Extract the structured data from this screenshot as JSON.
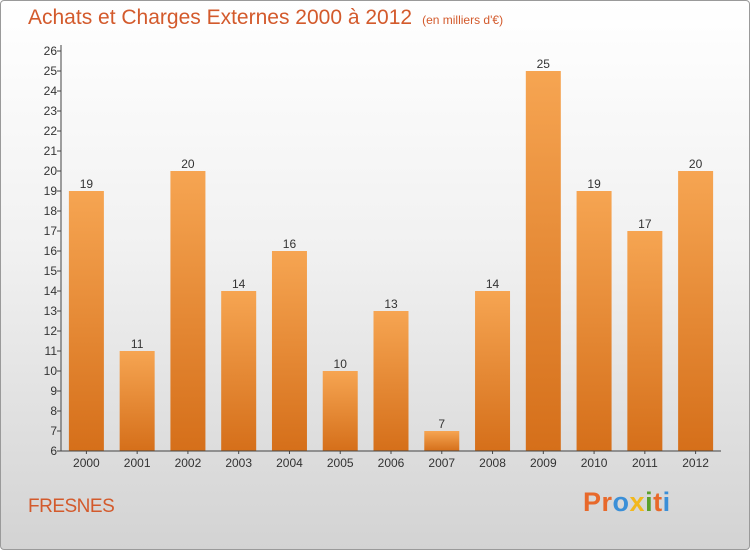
{
  "header": {
    "title": "Achats et Charges Externes 2000 à 2012",
    "subtitle": "(en milliers d'€)"
  },
  "footer": {
    "city": "FRESNES",
    "brand": "Proxiti",
    "brand_colors": [
      "#e8692b",
      "#e8692b",
      "#3a8fd8",
      "#f2b81d",
      "#5aa02c",
      "#e8692b",
      "#3a8fd8"
    ]
  },
  "colors": {
    "bar_light": "#f6a552",
    "bar_dark": "#d56f1a",
    "text": "#d35a2c",
    "axis": "#333333"
  },
  "chart_data": {
    "type": "bar",
    "title": "Achats et Charges Externes 2000 à 2012",
    "subtitle": "(en milliers d'€)",
    "categories": [
      "2000",
      "2001",
      "2002",
      "2003",
      "2004",
      "2005",
      "2006",
      "2007",
      "2008",
      "2009",
      "2010",
      "2011",
      "2012"
    ],
    "values": [
      19,
      11,
      20,
      14,
      16,
      10,
      13,
      7,
      14,
      25,
      19,
      17,
      20
    ],
    "ylim": [
      6,
      26
    ],
    "yticks": [
      6,
      7,
      8,
      9,
      10,
      11,
      12,
      13,
      14,
      15,
      16,
      17,
      18,
      19,
      20,
      21,
      22,
      23,
      24,
      25,
      26
    ],
    "grid": false,
    "data_labels": true
  }
}
